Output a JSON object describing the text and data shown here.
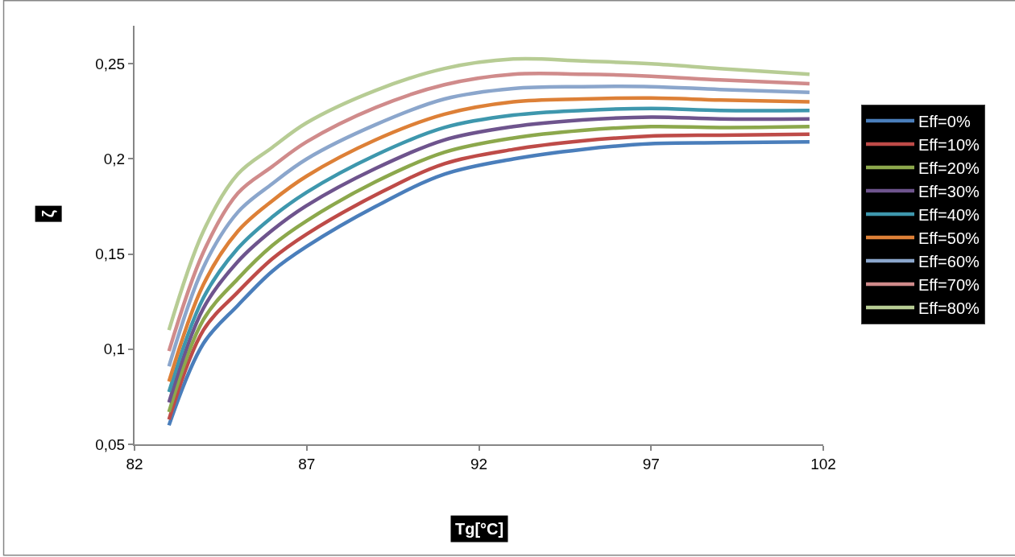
{
  "chart_data": {
    "type": "line",
    "xlabel": "Tg[°C]",
    "ylabel": "ζ",
    "x": [
      83,
      84,
      85,
      86,
      87,
      89,
      91,
      93,
      95,
      97,
      99,
      101.6
    ],
    "xlim": [
      82,
      102
    ],
    "xticks": [
      82,
      87,
      92,
      97,
      102
    ],
    "ylim": [
      0.05,
      0.27
    ],
    "yticks": [
      {
        "value": 0.05,
        "label": "0,05"
      },
      {
        "value": 0.1,
        "label": "0,1"
      },
      {
        "value": 0.15,
        "label": "0,15"
      },
      {
        "value": 0.2,
        "label": "0,2"
      },
      {
        "value": 0.25,
        "label": "0,25"
      }
    ],
    "legend": "right",
    "marker": "none",
    "line_style": "solid",
    "series": [
      {
        "name": "Eff=0%",
        "color": "#4a7ebb",
        "values": [
          0.06,
          0.103,
          0.123,
          0.141,
          0.154,
          0.175,
          0.192,
          0.2,
          0.205,
          0.208,
          0.2085,
          0.209
        ]
      },
      {
        "name": "Eff=10%",
        "color": "#be4b48",
        "values": [
          0.063,
          0.11,
          0.13,
          0.1475,
          0.1605,
          0.181,
          0.1975,
          0.205,
          0.2095,
          0.212,
          0.2125,
          0.213
        ]
      },
      {
        "name": "Eff=20%",
        "color": "#8ca84c",
        "values": [
          0.067,
          0.1155,
          0.137,
          0.1545,
          0.1675,
          0.188,
          0.2035,
          0.211,
          0.215,
          0.217,
          0.2165,
          0.217
        ]
      },
      {
        "name": "Eff=30%",
        "color": "#6e548d",
        "values": [
          0.072,
          0.1215,
          0.146,
          0.1625,
          0.1755,
          0.195,
          0.21,
          0.217,
          0.2205,
          0.222,
          0.221,
          0.221
        ]
      },
      {
        "name": "Eff=40%",
        "color": "#3e97ad",
        "values": [
          0.0775,
          0.127,
          0.153,
          0.1695,
          0.1825,
          0.202,
          0.2165,
          0.223,
          0.2255,
          0.2265,
          0.2255,
          0.2255
        ]
      },
      {
        "name": "Eff=50%",
        "color": "#dd8037",
        "values": [
          0.083,
          0.134,
          0.162,
          0.178,
          0.191,
          0.21,
          0.2235,
          0.23,
          0.2315,
          0.232,
          0.231,
          0.23
        ]
      },
      {
        "name": "Eff=60%",
        "color": "#8ba6cc",
        "values": [
          0.091,
          0.143,
          0.172,
          0.187,
          0.2,
          0.218,
          0.2315,
          0.237,
          0.238,
          0.238,
          0.2365,
          0.235
        ]
      },
      {
        "name": "Eff=70%",
        "color": "#d08b8b",
        "values": [
          0.099,
          0.151,
          0.182,
          0.196,
          0.209,
          0.227,
          0.239,
          0.2445,
          0.2445,
          0.2435,
          0.2415,
          0.2395
        ]
      },
      {
        "name": "Eff=80%",
        "color": "#b7cc94",
        "values": [
          0.11,
          0.162,
          0.192,
          0.206,
          0.219,
          0.236,
          0.2475,
          0.2525,
          0.2515,
          0.25,
          0.2475,
          0.2445
        ]
      }
    ]
  }
}
